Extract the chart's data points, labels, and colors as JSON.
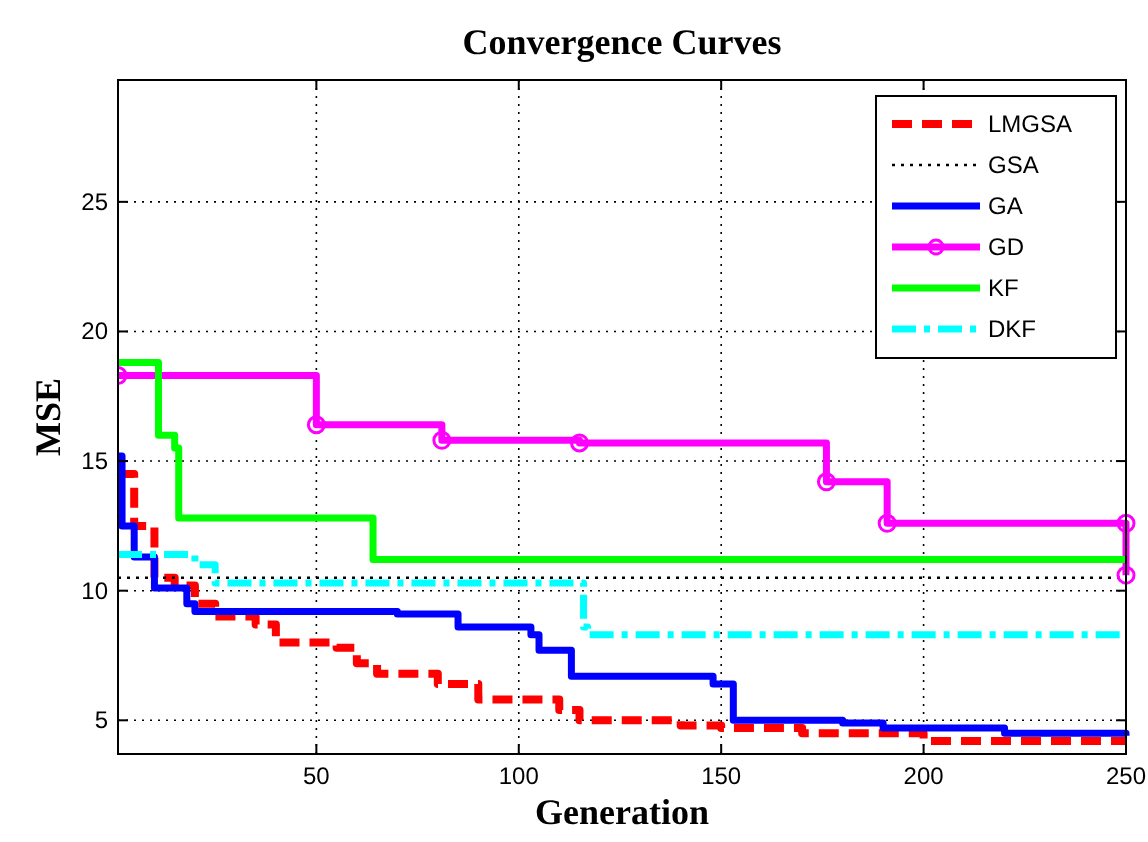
{
  "chart_data": {
    "type": "step",
    "title": "Convergence Curves",
    "xlabel": "Generation",
    "ylabel": "MSE",
    "xlim": [
      1,
      250
    ],
    "ylim": [
      3.7,
      29.7
    ],
    "xticks": [
      50,
      100,
      150,
      200,
      250
    ],
    "yticks": [
      5,
      10,
      15,
      20,
      25
    ],
    "grid": true,
    "legend": "top right",
    "series": [
      {
        "name": "LMGSA",
        "color": "#ff0000",
        "line_style": "dashed",
        "marker": "none",
        "x": [
          1,
          5,
          10,
          15,
          20,
          25,
          35,
          40,
          55,
          60,
          65,
          80,
          90,
          110,
          115,
          140,
          150,
          170,
          200,
          250
        ],
        "values": [
          14.5,
          12.5,
          10.5,
          10.2,
          9.5,
          9.0,
          8.7,
          8.0,
          7.8,
          7.2,
          6.8,
          6.4,
          5.8,
          5.4,
          5.0,
          4.8,
          4.7,
          4.5,
          4.2,
          4.2
        ]
      },
      {
        "name": "GSA",
        "color": "#000000",
        "line_style": "dotted",
        "marker": "none",
        "x": [
          1,
          250
        ],
        "values": [
          10.5,
          10.5
        ]
      },
      {
        "name": "GA",
        "color": "#0000ff",
        "line_style": "solid",
        "marker": "none",
        "x": [
          1,
          2,
          5,
          10,
          18,
          20,
          70,
          85,
          103,
          105,
          113,
          148,
          153,
          180,
          190,
          220,
          250
        ],
        "values": [
          15.2,
          12.5,
          11.3,
          10.1,
          9.5,
          9.2,
          9.1,
          8.6,
          8.3,
          7.7,
          6.7,
          6.4,
          5.0,
          4.9,
          4.7,
          4.5,
          4.4
        ]
      },
      {
        "name": "GD",
        "color": "#ff00ff",
        "line_style": "solid",
        "marker": "circle",
        "x": [
          1,
          50,
          81,
          115,
          176,
          191,
          250,
          250
        ],
        "values": [
          18.3,
          16.4,
          15.8,
          15.7,
          14.2,
          12.6,
          12.6,
          10.6
        ]
      },
      {
        "name": "KF",
        "color": "#00ff00",
        "line_style": "solid",
        "marker": "none",
        "x": [
          1,
          11,
          15,
          16,
          64,
          250
        ],
        "values": [
          18.8,
          16.0,
          15.5,
          12.8,
          11.2,
          11.2
        ]
      },
      {
        "name": "DKF",
        "color": "#00ffff",
        "line_style": "dashdot",
        "marker": "none",
        "x": [
          1,
          20,
          25,
          116,
          117,
          250
        ],
        "values": [
          11.4,
          11.0,
          10.3,
          8.6,
          8.3,
          8.3
        ]
      }
    ]
  }
}
